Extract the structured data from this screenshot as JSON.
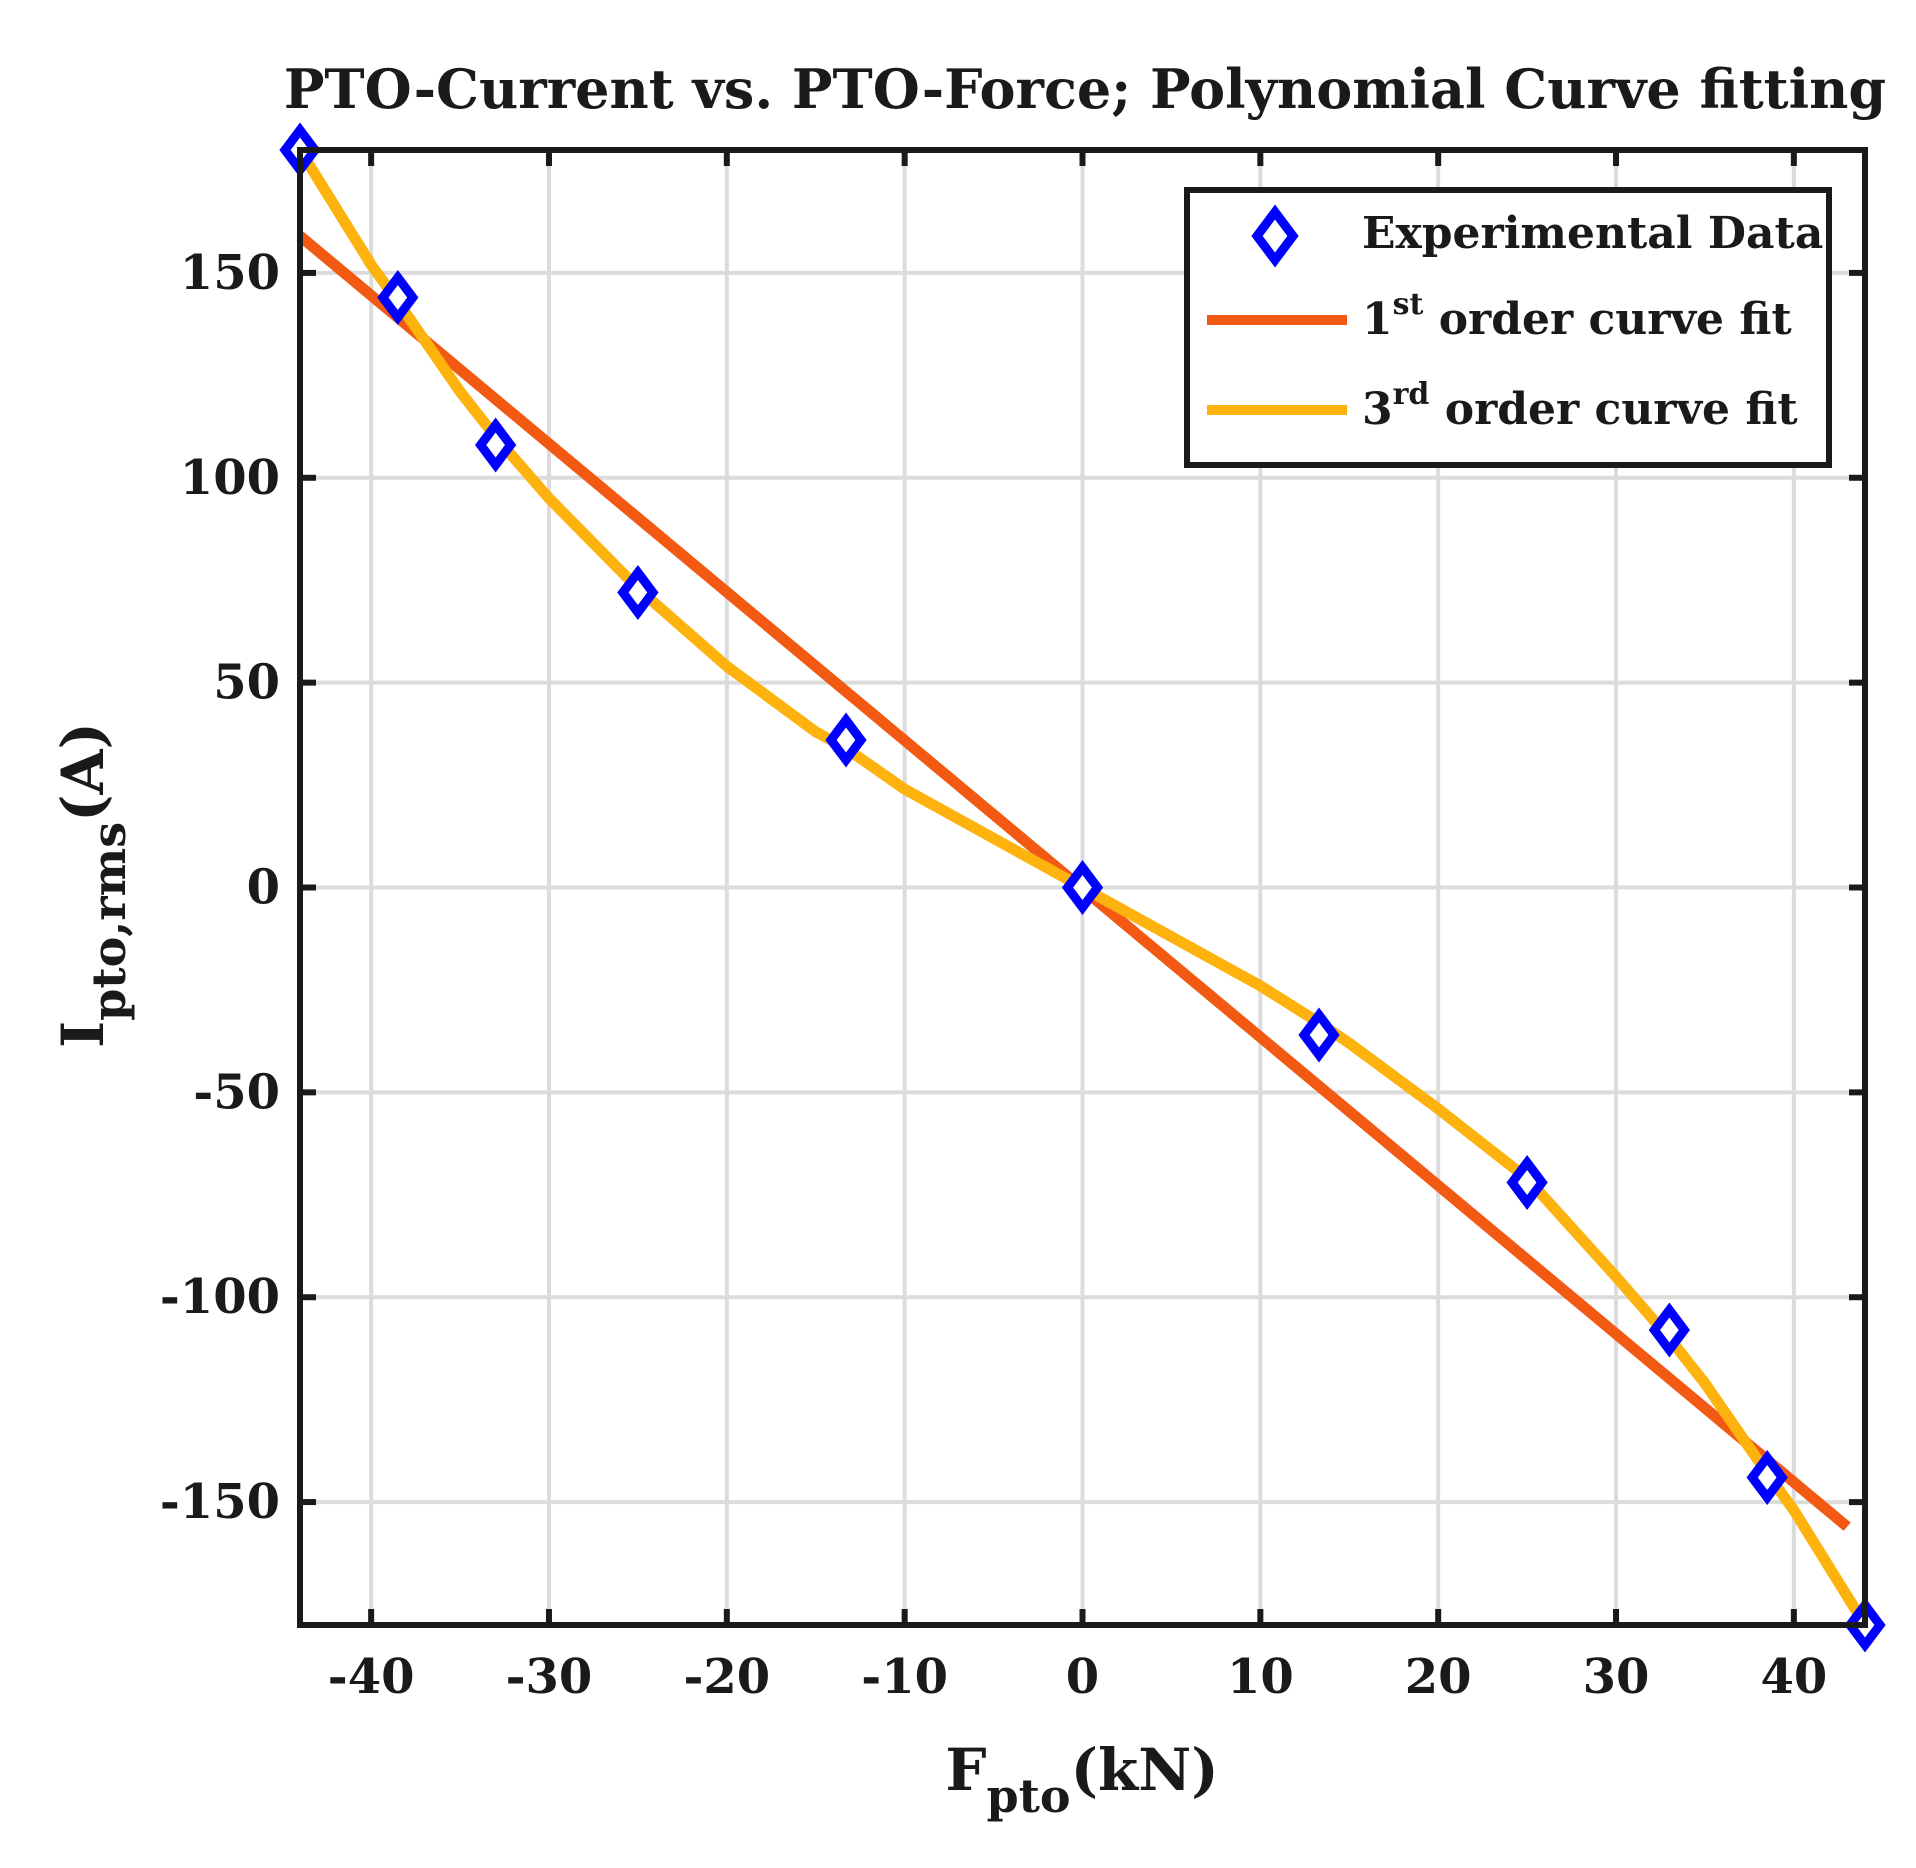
{
  "chart_data": {
    "type": "line",
    "title": "PTO-Current vs. PTO-Force; Polynomial Curve fitting",
    "xlabel": {
      "main": "F",
      "sub": "pto",
      "unit": "(kN)"
    },
    "ylabel": {
      "main": "I",
      "sub": "pto,rms",
      "unit": "(A)"
    },
    "xlim": [
      -44,
      44
    ],
    "ylim": [
      -180,
      180
    ],
    "xticks": [
      -40,
      -30,
      -20,
      -10,
      0,
      10,
      20,
      30,
      40
    ],
    "yticks": [
      -150,
      -100,
      -50,
      0,
      50,
      100,
      150
    ],
    "grid": true,
    "legend_position": "top-right",
    "legend": [
      {
        "label": "Experimental Data",
        "sup": "",
        "rest": "",
        "color": "#0000ff",
        "marker": "diamond"
      },
      {
        "label": "1",
        "sup": "st",
        "rest": " order curve fit",
        "color": "#f25a14",
        "marker": "line"
      },
      {
        "label": "3",
        "sup": "rd",
        "rest": " order curve fit",
        "color": "#fdb20d",
        "marker": "line"
      }
    ],
    "series": [
      {
        "name": "Experimental Data",
        "kind": "scatter",
        "color": "#0000ff",
        "x": [
          -44,
          -38.5,
          -33,
          -25,
          -13.3,
          0,
          13.3,
          25,
          33,
          38.5,
          44
        ],
        "y": [
          180,
          144,
          108,
          72,
          36,
          0,
          -36,
          -72,
          -108,
          -144,
          -180
        ]
      },
      {
        "name": "1st order curve fit",
        "kind": "line",
        "color": "#f25a14",
        "x": [
          -44,
          43
        ],
        "y": [
          159,
          -156
        ]
      },
      {
        "name": "3rd order curve fit",
        "kind": "line",
        "color": "#fdb20d",
        "x": [
          -44,
          -40,
          -38.5,
          -35,
          -33,
          -30,
          -25,
          -20,
          -15,
          -13.3,
          -10,
          -5,
          0,
          5,
          10,
          13.3,
          15,
          20,
          25,
          30,
          33,
          35,
          38.5,
          40,
          44
        ],
        "y": [
          180,
          152,
          143,
          121,
          110,
          95,
          73,
          54,
          38,
          34,
          24,
          12,
          0,
          -12,
          -24,
          -33,
          -38,
          -54,
          -71,
          -95,
          -110,
          -121,
          -143,
          -152,
          -180
        ]
      }
    ]
  }
}
